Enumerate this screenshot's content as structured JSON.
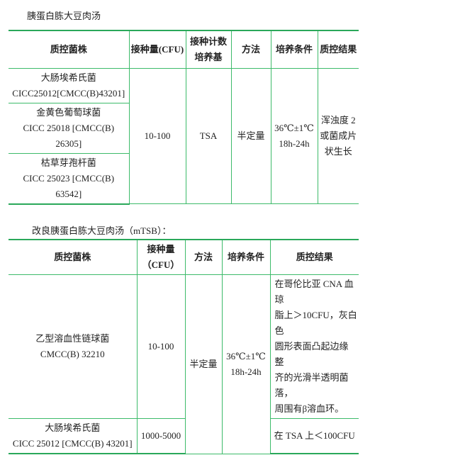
{
  "table1": {
    "title": "胰蛋白胨大豆肉汤",
    "headers": [
      "质控菌株",
      "接种量(CFU)",
      "接种计数",
      "培养基",
      "方法",
      "培养条件",
      "质控结果"
    ],
    "rows": [
      {
        "name": "大肠埃希氏菌",
        "code": "CICC25012[CMCC(B)43201]"
      },
      {
        "name": "金黄色葡萄球菌",
        "code": "CICC 25018 [CMCC(B) 26305]"
      },
      {
        "name": "枯草芽孢杆菌",
        "code": "CICC 25023 [CMCC(B) 63542]"
      }
    ],
    "inoculum": "10-100",
    "medium": "TSA",
    "method": "半定量",
    "temp": "36℃±1℃",
    "time": "18h-24h",
    "result": [
      "浑浊度 2",
      "或菌成片",
      "状生长"
    ]
  },
  "table2": {
    "title": "改良胰蛋白胨大豆肉汤（mTSB）：",
    "headers": [
      "质控菌株",
      "接种量",
      "（CFU）",
      "方法",
      "培养条件",
      "质控结果"
    ],
    "rows": [
      {
        "name": "乙型溶血性链球菌",
        "code": "CMCC(B) 32210",
        "inoculum": "10-100",
        "result": [
          "在哥伦比亚 CNA 血琼",
          "脂上＞10CFU，灰白色",
          "圆形表面凸起边缘整",
          "齐的光滑半透明菌落，",
          "周围有β溶血环。"
        ]
      },
      {
        "name": "大肠埃希氏菌",
        "code": "CICC 25012 [CMCC(B) 43201]",
        "inoculum": "1000-5000",
        "result": [
          "在 TSA 上＜100CFU"
        ]
      }
    ],
    "method": "半定量",
    "temp": "36℃±1℃",
    "time": "18h-24h"
  }
}
